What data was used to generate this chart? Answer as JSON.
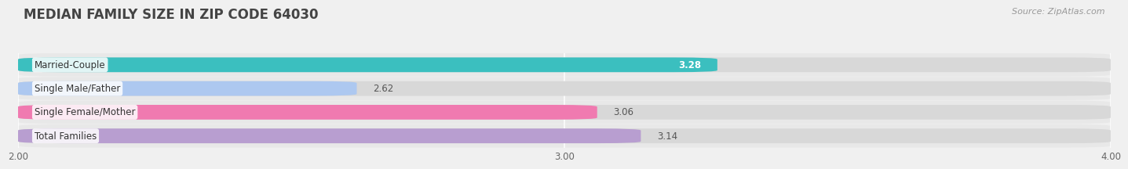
{
  "title": "MEDIAN FAMILY SIZE IN ZIP CODE 64030",
  "source": "Source: ZipAtlas.com",
  "categories": [
    "Married-Couple",
    "Single Male/Father",
    "Single Female/Mother",
    "Total Families"
  ],
  "values": [
    3.28,
    2.62,
    3.06,
    3.14
  ],
  "bar_colors": [
    "#3bbfbf",
    "#adc8f0",
    "#f07ab0",
    "#b89ed0"
  ],
  "background_color": "#f0f0f0",
  "row_bg_colors": [
    "#e8e8e8",
    "#e8e8e8",
    "#e8e8e8",
    "#e8e8e8"
  ],
  "xlim": [
    2.0,
    4.0
  ],
  "xticks": [
    2.0,
    3.0,
    4.0
  ],
  "label_fontsize": 8.5,
  "value_fontsize": 8.5,
  "title_fontsize": 12,
  "source_fontsize": 8
}
